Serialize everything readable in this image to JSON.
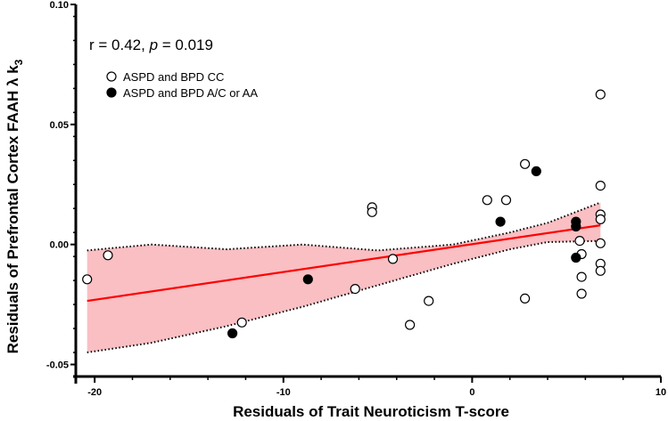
{
  "chart_data": {
    "type": "scatter",
    "xlabel": "Residuals of Trait Neuroticism T-score",
    "ylabel": "Residuals of Prefrontal Cortex FAAH λ k",
    "ylabel_subscript": "3",
    "xlim": [
      -21,
      10
    ],
    "ylim": [
      -0.055,
      0.1
    ],
    "x_ticks": [
      -20,
      -10,
      0,
      10
    ],
    "x_tick_labels": [
      "-20",
      "-10",
      "0",
      "10"
    ],
    "y_ticks": [
      -0.05,
      0.0,
      0.05,
      0.1
    ],
    "y_tick_labels": [
      "-0.05",
      "0.00",
      "0.05",
      "0.10"
    ],
    "grid": false,
    "annotation": {
      "r_text": "r = 0.42, ",
      "p_symbol": "p",
      "p_text": " = 0.019"
    },
    "legend_position": "top-left",
    "series": [
      {
        "name": "ASPD and BPD CC",
        "marker": "open-circle",
        "points": [
          {
            "x": -20.4,
            "y": -0.0145
          },
          {
            "x": -19.3,
            "y": -0.0045
          },
          {
            "x": -12.2,
            "y": -0.0325
          },
          {
            "x": -6.2,
            "y": -0.0185
          },
          {
            "x": -5.3,
            "y": 0.0155
          },
          {
            "x": -5.3,
            "y": 0.0135
          },
          {
            "x": -4.2,
            "y": -0.006
          },
          {
            "x": -3.3,
            "y": -0.0335
          },
          {
            "x": -2.3,
            "y": -0.0235
          },
          {
            "x": 0.8,
            "y": 0.0185
          },
          {
            "x": 1.8,
            "y": 0.0185
          },
          {
            "x": 2.8,
            "y": 0.0335
          },
          {
            "x": 2.8,
            "y": -0.0225
          },
          {
            "x": 5.7,
            "y": 0.0015
          },
          {
            "x": 5.8,
            "y": -0.004
          },
          {
            "x": 5.8,
            "y": -0.0135
          },
          {
            "x": 5.8,
            "y": -0.0205
          },
          {
            "x": 6.8,
            "y": 0.0625
          },
          {
            "x": 6.8,
            "y": 0.0245
          },
          {
            "x": 6.8,
            "y": 0.0125
          },
          {
            "x": 6.8,
            "y": 0.0105
          },
          {
            "x": 6.8,
            "y": 0.0005
          },
          {
            "x": 6.8,
            "y": -0.008
          },
          {
            "x": 6.8,
            "y": -0.011
          }
        ]
      },
      {
        "name": "ASPD and BPD A/C or AA",
        "marker": "filled-circle",
        "points": [
          {
            "x": -12.7,
            "y": -0.037
          },
          {
            "x": -8.7,
            "y": -0.0145
          },
          {
            "x": 1.5,
            "y": 0.0095
          },
          {
            "x": 3.4,
            "y": 0.0305
          },
          {
            "x": 5.5,
            "y": 0.0095
          },
          {
            "x": 5.5,
            "y": 0.0075
          },
          {
            "x": 5.5,
            "y": -0.0055
          }
        ]
      }
    ],
    "regression": {
      "x_start": -20.4,
      "x_end": 6.8,
      "y_start": -0.0235,
      "y_end": 0.008,
      "color": "#ff0000"
    },
    "confidence_band": {
      "x": [
        -20.4,
        -17,
        -13,
        -9,
        -5,
        -1,
        2,
        4,
        6.8
      ],
      "upper": [
        -0.0025,
        0.0,
        -0.002,
        0.0,
        -0.0025,
        0.0,
        0.005,
        0.009,
        0.0175
      ],
      "lower": [
        -0.045,
        -0.041,
        -0.034,
        -0.026,
        -0.017,
        -0.008,
        -0.002,
        0.001,
        0.0015
      ],
      "fill_color": "#f8b4b8",
      "border_style": "dotted"
    }
  }
}
